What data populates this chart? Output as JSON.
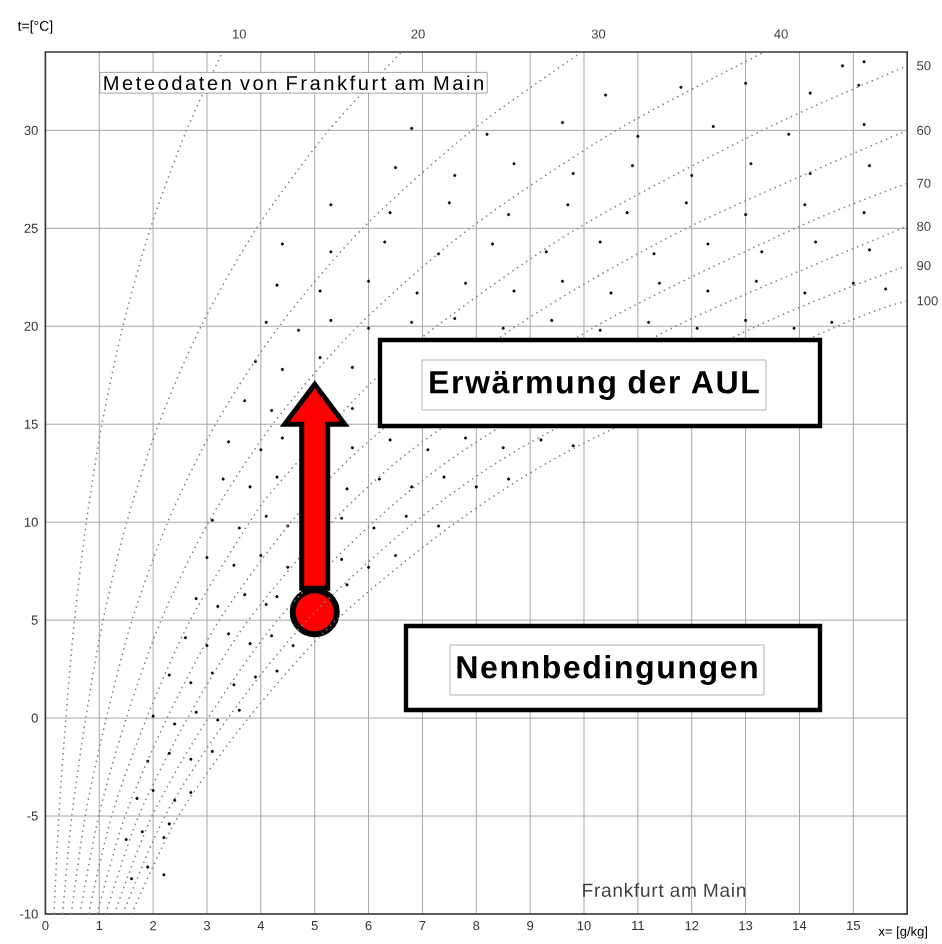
{
  "chart_data": {
    "type": "scatter",
    "title": "Meteodaten von Frankfurt am Main",
    "xlabel": "x= [g/kg]",
    "ylabel": "t=[°C]",
    "annotations": [
      "Frankfurt am Main",
      "Erwärmung der AUL",
      "Nennbedingungen"
    ],
    "xlim": [
      0,
      16
    ],
    "ylim": [
      -10,
      34
    ],
    "xticks": [
      0,
      1,
      2,
      3,
      4,
      5,
      6,
      7,
      8,
      9,
      10,
      11,
      12,
      13,
      14,
      15
    ],
    "yticks": [
      -10,
      -5,
      0,
      5,
      10,
      15,
      20,
      25,
      30
    ],
    "grid": true,
    "marker": "circle",
    "series": [
      {
        "color": "#000000",
        "x": [
          1.6,
          1.9,
          2.2,
          1.5,
          1.8,
          2.2,
          2.3,
          1.7,
          2.0,
          2.4,
          2.7,
          1.9,
          2.3,
          2.7,
          3.1,
          2.0,
          2.4,
          2.8,
          3.2,
          3.6,
          2.3,
          2.7,
          3.1,
          3.5,
          3.9,
          4.3,
          2.6,
          3.0,
          3.4,
          3.8,
          4.2,
          4.6,
          2.8,
          3.2,
          3.7,
          4.1,
          4.3,
          5.6,
          3.0,
          3.5,
          4.0,
          4.5,
          5.5,
          6.0,
          6.5,
          3.1,
          3.6,
          4.1,
          4.5,
          5.5,
          6.1,
          6.7,
          7.3,
          3.3,
          3.8,
          4.3,
          5.6,
          6.2,
          6.8,
          7.4,
          8.0,
          8.6,
          3.4,
          4.0,
          4.4,
          5.7,
          6.4,
          7.1,
          7.8,
          8.5,
          9.2,
          9.8,
          3.7,
          4.2,
          5.7,
          3.9,
          4.4,
          5.1,
          5.7,
          4.1,
          4.7,
          5.3,
          6.0,
          6.8,
          7.6,
          8.5,
          9.4,
          10.3,
          11.2,
          12.1,
          13.0,
          13.9,
          14.6,
          4.3,
          5.1,
          6.0,
          6.9,
          7.8,
          8.7,
          9.6,
          10.5,
          11.4,
          12.3,
          13.2,
          14.1,
          15.0,
          15.6,
          4.4,
          5.3,
          6.3,
          7.3,
          8.3,
          9.3,
          10.3,
          11.3,
          12.3,
          13.3,
          14.3,
          15.3,
          5.3,
          6.4,
          7.5,
          8.6,
          9.7,
          10.8,
          11.9,
          13.0,
          14.1,
          15.2,
          6.5,
          7.6,
          8.7,
          9.8,
          10.9,
          12.0,
          13.1,
          14.2,
          15.3,
          6.8,
          8.2,
          9.6,
          11.0,
          12.4,
          13.8,
          15.2,
          10.4,
          11.8,
          13.0,
          14.2,
          15.1,
          14.8,
          15.2
        ],
        "values": [
          -8.2,
          -7.6,
          -8.0,
          -6.2,
          -5.8,
          -6.1,
          -5.4,
          -4.1,
          -3.7,
          -4.2,
          -3.8,
          -2.2,
          -1.8,
          -2.1,
          -1.7,
          0.1,
          -0.3,
          0.3,
          -0.1,
          0.4,
          2.2,
          1.8,
          2.3,
          1.7,
          2.1,
          2.4,
          4.1,
          3.7,
          4.3,
          3.8,
          4.2,
          3.7,
          6.1,
          5.7,
          6.3,
          5.8,
          6.2,
          6.8,
          8.2,
          7.8,
          8.3,
          7.7,
          8.1,
          7.7,
          8.3,
          10.1,
          9.7,
          10.3,
          9.8,
          10.2,
          9.7,
          10.3,
          9.8,
          12.2,
          11.8,
          12.3,
          11.7,
          12.2,
          11.8,
          12.3,
          11.8,
          12.2,
          14.1,
          13.7,
          14.3,
          13.8,
          14.2,
          13.7,
          14.3,
          13.8,
          14.2,
          13.9,
          16.2,
          15.7,
          15.8,
          18.2,
          17.8,
          18.4,
          17.9,
          20.2,
          19.8,
          20.3,
          19.9,
          20.2,
          20.4,
          19.9,
          20.3,
          19.8,
          20.2,
          19.9,
          20.3,
          19.9,
          20.2,
          22.1,
          21.8,
          22.3,
          21.7,
          22.2,
          21.8,
          22.3,
          21.7,
          22.2,
          21.8,
          22.3,
          21.7,
          22.2,
          21.9,
          24.2,
          23.8,
          24.3,
          23.7,
          24.2,
          23.8,
          24.3,
          23.7,
          24.2,
          23.8,
          24.3,
          23.9,
          26.2,
          25.8,
          26.3,
          25.7,
          26.2,
          25.8,
          26.3,
          25.7,
          26.2,
          25.8,
          28.1,
          27.7,
          28.3,
          27.8,
          28.2,
          27.7,
          28.3,
          27.8,
          28.2,
          30.1,
          29.8,
          30.4,
          29.7,
          30.2,
          29.8,
          30.3,
          31.8,
          32.2,
          32.4,
          31.9,
          32.3,
          33.3,
          33.5
        ]
      },
      {
        "type": "scatter",
        "color": "#ff0000",
        "x": [
          5
        ],
        "values": [
          5.4
        ]
      },
      {
        "name": "10",
        "type": "line",
        "color": "#808080",
        "marker": "none",
        "line_style": "dotted",
        "x": [
          0.16,
          0.25,
          0.38,
          0.54,
          0.76,
          1.05,
          1.44,
          1.95,
          2.62,
          3.29
        ],
        "values": [
          -10,
          -5,
          0,
          5,
          10,
          15,
          20,
          25,
          30,
          34
        ]
      },
      {
        "name": "20",
        "type": "line",
        "color": "#808080",
        "marker": "none",
        "line_style": "dotted",
        "x": [
          0.32,
          0.49,
          0.75,
          1.07,
          1.51,
          2.1,
          2.89,
          3.92,
          5.26,
          6.61
        ],
        "values": [
          -10,
          -5,
          0,
          5,
          10,
          15,
          20,
          25,
          30,
          34
        ]
      },
      {
        "name": "30",
        "type": "line",
        "color": "#808080",
        "marker": "none",
        "line_style": "dotted",
        "x": [
          0.48,
          0.74,
          1.13,
          1.61,
          2.27,
          3.16,
          4.34,
          5.89,
          7.92,
          9.96
        ],
        "values": [
          -10,
          -5,
          0,
          5,
          10,
          15,
          20,
          25,
          30,
          34
        ]
      },
      {
        "name": "40",
        "type": "line",
        "color": "#808080",
        "marker": "none",
        "line_style": "dotted",
        "x": [
          0.64,
          0.99,
          1.5,
          2.15,
          3.03,
          4.22,
          5.8,
          7.88,
          10.6,
          13.35
        ],
        "values": [
          -10,
          -5,
          0,
          5,
          10,
          15,
          20,
          25,
          30,
          34
        ]
      },
      {
        "name": "50",
        "type": "line",
        "color": "#808080",
        "marker": "none",
        "line_style": "dotted",
        "x": [
          0.8,
          1.23,
          1.88,
          2.69,
          3.79,
          4.34,
          5.93,
          7.26,
          9.88,
          13.31,
          16
        ],
        "values": [
          -10,
          -5,
          0,
          5,
          10,
          12,
          16.8,
          20,
          25,
          30,
          33.3
        ]
      },
      {
        "name": "60",
        "type": "line",
        "color": "#808080",
        "marker": "none",
        "line_style": "dotted",
        "x": [
          0.96,
          1.48,
          2.26,
          3.23,
          4.56,
          5.95,
          8.74,
          11.9,
          16
        ],
        "values": [
          -10,
          -5,
          0,
          5,
          10,
          14,
          20,
          25,
          30
        ]
      },
      {
        "name": "70",
        "type": "line",
        "color": "#808080",
        "marker": "none",
        "line_style": "dotted",
        "x": [
          1.12,
          1.73,
          2.64,
          3.77,
          5.32,
          6.95,
          10.22,
          13.92,
          16
        ],
        "values": [
          -10,
          -5,
          0,
          5,
          10,
          14,
          20,
          25,
          27.3
        ]
      },
      {
        "name": "80",
        "type": "line",
        "color": "#808080",
        "marker": "none",
        "line_style": "dotted",
        "x": [
          1.28,
          1.98,
          3.02,
          4.31,
          6.09,
          7.95,
          11.7,
          16
        ],
        "values": [
          -10,
          -5,
          0,
          5,
          10,
          14,
          20,
          25.1
        ]
      },
      {
        "name": "90",
        "type": "line",
        "color": "#808080",
        "marker": "none",
        "line_style": "dotted",
        "x": [
          1.44,
          2.22,
          3.39,
          4.86,
          6.86,
          8.96,
          13.2,
          16
        ],
        "values": [
          -10,
          -5,
          0,
          5,
          10,
          14,
          20,
          23.1
        ]
      },
      {
        "name": "100",
        "type": "line",
        "color": "#808080",
        "marker": "none",
        "line_style": "dotted",
        "x": [
          1.6,
          2.47,
          3.77,
          5.4,
          7.63,
          9.97,
          14.7,
          16
        ],
        "values": [
          -10,
          -5,
          0,
          5,
          10,
          14,
          20,
          21.3
        ]
      }
    ]
  }
}
